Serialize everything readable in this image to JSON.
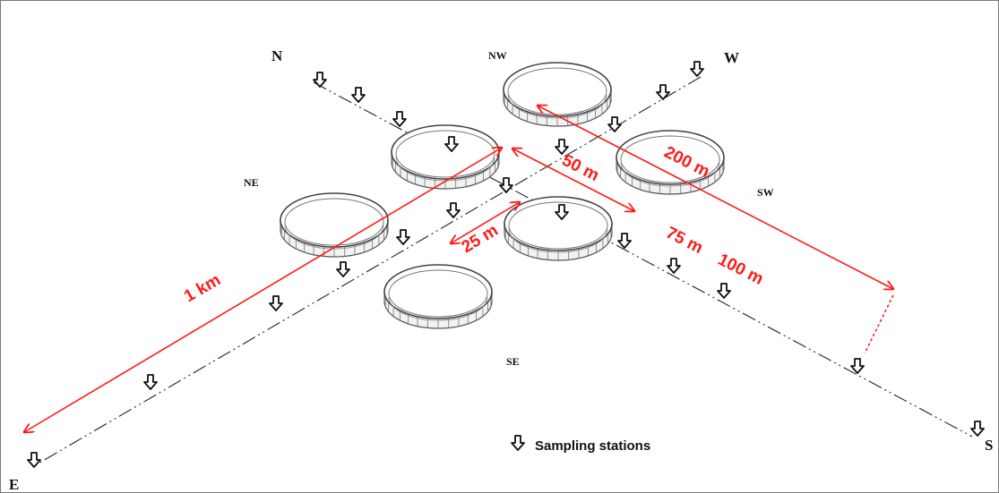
{
  "directions": {
    "N": "N",
    "W": "W",
    "E": "E",
    "S": "S",
    "NW": "NW",
    "NE": "NE",
    "SW": "SW",
    "SE": "SE"
  },
  "distances": {
    "d1km": "1 km",
    "d25": "25 m",
    "d50": "50 m",
    "d75": "75 m",
    "d100": "100 m",
    "d200": "200 m"
  },
  "legend": {
    "icon": "down-arrow-icon",
    "label": "Sampling stations"
  },
  "colors": {
    "annotation": "#ff1a1a",
    "lines": "#222222",
    "cages": "#555555"
  }
}
